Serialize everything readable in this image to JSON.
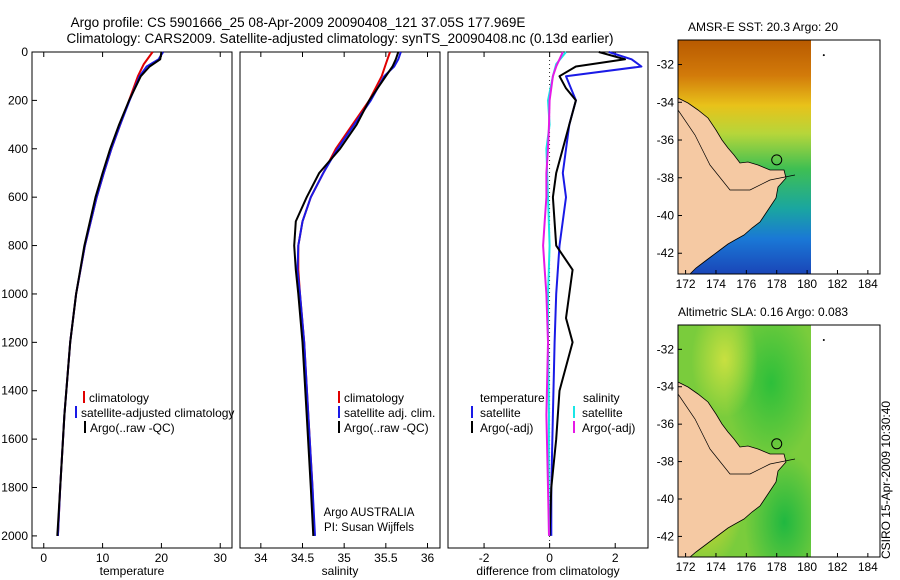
{
  "title_line1": "Argo profile: CS 5901666_25 08-Apr-2009 20090408_121 37.05S 177.969E",
  "title_line2": "Climatology: CARS2009. Satellite-adjusted climatology: synTS_20090408.nc (0.13d earlier)",
  "side_label": "CSIRO 15-Apr-2009 10:30:40",
  "colors": {
    "red": "#e00000",
    "blue": "#1a1ae6",
    "black": "#000000",
    "cyan": "#19e6e6",
    "magenta": "#e619e6",
    "land": "#f5c9a3"
  },
  "chart_data": [
    {
      "type": "line",
      "id": "temperature",
      "xlabel": "temperature",
      "ylabel": "",
      "xlim": [
        -2,
        32
      ],
      "ylim": [
        2050,
        0
      ],
      "xticks": [
        0,
        10,
        20,
        30
      ],
      "yticks": [
        0,
        200,
        400,
        600,
        800,
        1000,
        1200,
        1400,
        1600,
        1800,
        2000
      ],
      "legend": [
        "climatology",
        "satellite-adjusted climatology",
        "Argo(..raw -QC)"
      ],
      "series": [
        {
          "name": "climatology",
          "color": "red",
          "depth": [
            0,
            50,
            100,
            200,
            300,
            400,
            500,
            600,
            800,
            1000,
            1200,
            1500,
            1800,
            2000
          ],
          "values": [
            18.5,
            17.0,
            16.0,
            14.5,
            13.0,
            11.5,
            10.2,
            9.0,
            7.0,
            5.5,
            4.5,
            3.5,
            2.8,
            2.4
          ]
        },
        {
          "name": "satellite-adjusted climatology",
          "color": "blue",
          "depth": [
            0,
            30,
            60,
            100,
            200,
            300,
            400,
            500,
            600,
            800,
            1000,
            1200,
            1500,
            1800,
            2000
          ],
          "values": [
            20.3,
            19.5,
            17.5,
            16.3,
            14.6,
            13.0,
            11.5,
            10.2,
            9.0,
            7.0,
            5.5,
            4.5,
            3.5,
            2.8,
            2.4
          ]
        },
        {
          "name": "Argo(..raw -QC)",
          "color": "black",
          "depth": [
            0,
            30,
            60,
            100,
            200,
            300,
            400,
            500,
            600,
            800,
            1000,
            1200,
            1500,
            1800,
            2000
          ],
          "values": [
            20.0,
            19.8,
            18.0,
            16.5,
            14.5,
            12.8,
            11.3,
            10.0,
            8.8,
            6.9,
            5.5,
            4.5,
            3.5,
            2.8,
            2.3
          ]
        }
      ]
    },
    {
      "type": "line",
      "id": "salinity",
      "xlabel": "salinity",
      "ylabel": "",
      "xlim": [
        33.75,
        36.15
      ],
      "ylim": [
        2050,
        0
      ],
      "xticks": [
        34,
        34.5,
        35,
        35.5,
        36
      ],
      "yticks": [],
      "legend": [
        "climatology",
        "satellite adj. clim.",
        "Argo(..raw -QC)"
      ],
      "annotation": [
        "Argo AUSTRALIA",
        "PI: Susan Wijffels"
      ],
      "series": [
        {
          "name": "climatology",
          "color": "red",
          "depth": [
            0,
            50,
            100,
            200,
            300,
            400,
            500,
            600,
            700,
            800,
            900,
            1000,
            1200,
            1500,
            1800,
            2000
          ],
          "values": [
            35.55,
            35.5,
            35.45,
            35.3,
            35.1,
            34.9,
            34.75,
            34.6,
            34.5,
            34.45,
            34.45,
            34.47,
            34.52,
            34.57,
            34.62,
            34.64
          ]
        },
        {
          "name": "satellite adj. clim.",
          "color": "blue",
          "depth": [
            0,
            30,
            60,
            100,
            200,
            300,
            400,
            500,
            600,
            700,
            800,
            900,
            1000,
            1200,
            1500,
            1800,
            2000
          ],
          "values": [
            35.68,
            35.65,
            35.6,
            35.48,
            35.32,
            35.12,
            34.92,
            34.75,
            34.6,
            34.5,
            34.45,
            34.44,
            34.47,
            34.52,
            34.57,
            34.62,
            34.65
          ]
        },
        {
          "name": "Argo(..raw -QC)",
          "color": "black",
          "depth": [
            0,
            30,
            60,
            100,
            200,
            300,
            400,
            500,
            600,
            700,
            800,
            900,
            1000,
            1200,
            1500,
            1800,
            2000
          ],
          "values": [
            35.65,
            35.62,
            35.58,
            35.5,
            35.3,
            35.15,
            34.95,
            34.7,
            34.55,
            34.42,
            34.4,
            34.42,
            34.45,
            34.5,
            34.55,
            34.6,
            34.63
          ]
        }
      ]
    },
    {
      "type": "line",
      "id": "difference",
      "xlabel": "difference from climatology",
      "ylabel": "",
      "xlim": [
        -3.1,
        3.0
      ],
      "ylim": [
        2050,
        0
      ],
      "xticks": [
        -2,
        0,
        2
      ],
      "yticks": [],
      "legend_temp": {
        "heading": "temperature",
        "items": [
          "satellite",
          "Argo(-adj)"
        ]
      },
      "legend_sal": {
        "heading": "salinity",
        "items": [
          "satellite",
          "Argo(-adj)"
        ]
      },
      "series": [
        {
          "name": "temperature satellite",
          "color": "blue",
          "depth": [
            0,
            30,
            60,
            100,
            200,
            300,
            500,
            600,
            800,
            1000,
            1200,
            1500,
            1800,
            2000
          ],
          "values": [
            1.8,
            2.5,
            2.8,
            0.5,
            0.8,
            0.6,
            0.4,
            0.5,
            0.3,
            0.2,
            0.15,
            0.1,
            0.05,
            0.05
          ]
        },
        {
          "name": "temperature Argo(-adj)",
          "color": "black",
          "depth": [
            0,
            30,
            60,
            100,
            150,
            200,
            300,
            400,
            500,
            600,
            800,
            900,
            1000,
            1100,
            1200,
            1400,
            1600,
            1800,
            2000
          ],
          "values": [
            1.5,
            2.3,
            0.8,
            0.3,
            0.5,
            0.8,
            0.6,
            0.4,
            0.2,
            0.1,
            0.2,
            0.7,
            0.6,
            0.5,
            0.7,
            0.3,
            0.2,
            0.05,
            0.0
          ]
        },
        {
          "name": "salinity satellite",
          "color": "cyan",
          "depth": [
            0,
            50,
            100,
            200,
            300,
            400,
            600,
            800,
            1000,
            1200,
            1500,
            1800,
            2000
          ],
          "values": [
            0.5,
            0.2,
            0.1,
            -0.05,
            0.0,
            -0.1,
            -0.05,
            0.0,
            -0.05,
            -0.05,
            -0.02,
            -0.03,
            -0.02
          ]
        },
        {
          "name": "salinity Argo(-adj)",
          "color": "magenta",
          "depth": [
            0,
            30,
            60,
            100,
            200,
            300,
            400,
            500,
            600,
            700,
            800,
            900,
            1000,
            1200,
            1500,
            1800,
            2000
          ],
          "values": [
            0.4,
            0.3,
            0.2,
            0.1,
            0.0,
            -0.02,
            -0.05,
            -0.1,
            -0.1,
            -0.15,
            -0.2,
            -0.15,
            -0.1,
            -0.05,
            -0.1,
            -0.05,
            -0.02
          ]
        }
      ]
    }
  ],
  "maps": [
    {
      "id": "sst",
      "title": "AMSR-E SST: 20.3 Argo: 20",
      "xticks": [
        172,
        174,
        176,
        178,
        180,
        182,
        184
      ],
      "yticks": [
        -32,
        -34,
        -36,
        -38,
        -40,
        -42
      ],
      "xlim": [
        171.5,
        184.8
      ],
      "ylim": [
        -43.1,
        -30.7
      ],
      "marker": [
        178,
        -37.05
      ],
      "fill": "sst"
    },
    {
      "id": "sla",
      "title": "Altimetric SLA: 0.16 Argo: 0.083",
      "xticks": [
        172,
        174,
        176,
        178,
        180,
        182,
        184
      ],
      "yticks": [
        -32,
        -34,
        -36,
        -38,
        -40,
        -42
      ],
      "xlim": [
        171.5,
        184.8
      ],
      "ylim": [
        -43.1,
        -30.7
      ],
      "marker": [
        178,
        -37.05
      ],
      "fill": "sla"
    }
  ]
}
